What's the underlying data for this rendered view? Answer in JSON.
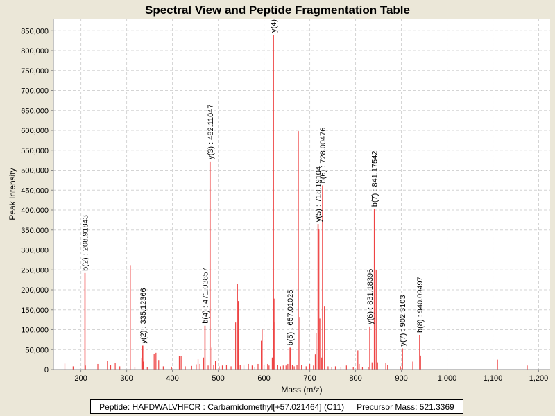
{
  "chart_data": {
    "type": "bar",
    "title": "Spectral View and Peptide Fragmentation Table",
    "xlabel": "Mass (m/z)",
    "ylabel": "Peak Intensity",
    "xlim": [
      140,
      1225
    ],
    "ylim": [
      0,
      880000
    ],
    "x_ticks": [
      200,
      300,
      400,
      500,
      600,
      700,
      800,
      900,
      1000,
      1100,
      1200
    ],
    "x_tick_labels": [
      "200",
      "300",
      "400",
      "500",
      "600",
      "700",
      "800",
      "900",
      "1,000",
      "1,100",
      "1,200"
    ],
    "y_ticks": [
      0,
      50000,
      100000,
      150000,
      200000,
      250000,
      300000,
      350000,
      400000,
      450000,
      500000,
      550000,
      600000,
      650000,
      700000,
      750000,
      800000,
      850000
    ],
    "y_tick_labels": [
      "0",
      "50,000",
      "100,000",
      "150,000",
      "200,000",
      "250,000",
      "300,000",
      "350,000",
      "400,000",
      "450,000",
      "500,000",
      "550,000",
      "600,000",
      "650,000",
      "700,000",
      "750,000",
      "800,000",
      "850,000"
    ],
    "grid": true,
    "series_color": "#ee4444",
    "annotated_peaks": [
      {
        "mz": 208.91843,
        "intensity": 242000,
        "label": "b(2) : 208.91843"
      },
      {
        "mz": 335.12366,
        "intensity": 60000,
        "label": "y(2) : 335.12366"
      },
      {
        "mz": 471.03857,
        "intensity": 110000,
        "label": "b(4) : 471.03857"
      },
      {
        "mz": 482.11047,
        "intensity": 522000,
        "label": "y(3) : 482.11047"
      },
      {
        "mz": 620.5,
        "intensity": 840000,
        "label": "y(4)"
      },
      {
        "mz": 657.01025,
        "intensity": 55000,
        "label": "b(5) : 657.01025"
      },
      {
        "mz": 718.19104,
        "intensity": 365000,
        "label": "y(5) : 718.19104"
      },
      {
        "mz": 728.00476,
        "intensity": 462000,
        "label": "b(6) : 728.00476"
      },
      {
        "mz": 831.18396,
        "intensity": 108000,
        "label": "y(6) : 831.18396"
      },
      {
        "mz": 841.17542,
        "intensity": 403000,
        "label": "b(7) : 841.17542"
      },
      {
        "mz": 902.3103,
        "intensity": 53000,
        "label": "y(7) : 902.3103"
      },
      {
        "mz": 940.09497,
        "intensity": 87000,
        "label": "b(8) : 940.09497"
      }
    ],
    "peaks": [
      [
        165,
        15000
      ],
      [
        183,
        8000
      ],
      [
        210,
        10000
      ],
      [
        237,
        14000
      ],
      [
        258,
        22000
      ],
      [
        265,
        12000
      ],
      [
        275,
        16000
      ],
      [
        285,
        8000
      ],
      [
        308,
        262000
      ],
      [
        318,
        7000
      ],
      [
        333,
        28000
      ],
      [
        337,
        20000
      ],
      [
        345,
        6000
      ],
      [
        360,
        40000
      ],
      [
        364,
        42000
      ],
      [
        370,
        24000
      ],
      [
        380,
        8000
      ],
      [
        398,
        7000
      ],
      [
        415,
        34000
      ],
      [
        419,
        34000
      ],
      [
        428,
        8000
      ],
      [
        442,
        9000
      ],
      [
        452,
        13000
      ],
      [
        456,
        26000
      ],
      [
        460,
        14000
      ],
      [
        468,
        30000
      ],
      [
        478,
        10000
      ],
      [
        486,
        55000
      ],
      [
        490,
        12000
      ],
      [
        494,
        22000
      ],
      [
        502,
        8000
      ],
      [
        509,
        10000
      ],
      [
        518,
        12000
      ],
      [
        528,
        8000
      ],
      [
        538,
        118000
      ],
      [
        542,
        215000
      ],
      [
        544,
        172000
      ],
      [
        548,
        12000
      ],
      [
        556,
        10000
      ],
      [
        566,
        14000
      ],
      [
        574,
        10000
      ],
      [
        580,
        6000
      ],
      [
        587,
        14000
      ],
      [
        594,
        72000
      ],
      [
        596,
        100000
      ],
      [
        600,
        12000
      ],
      [
        608,
        14000
      ],
      [
        611,
        10000
      ],
      [
        618,
        30000
      ],
      [
        622,
        178000
      ],
      [
        624,
        118000
      ],
      [
        630,
        12000
      ],
      [
        636,
        8000
      ],
      [
        642,
        10000
      ],
      [
        648,
        10000
      ],
      [
        652,
        14000
      ],
      [
        662,
        12000
      ],
      [
        666,
        8000
      ],
      [
        672,
        12000
      ],
      [
        675,
        598000
      ],
      [
        678,
        132000
      ],
      [
        682,
        12000
      ],
      [
        692,
        8000
      ],
      [
        700,
        14000
      ],
      [
        708,
        10000
      ],
      [
        712,
        38000
      ],
      [
        714,
        92000
      ],
      [
        720,
        352000
      ],
      [
        722,
        128000
      ],
      [
        726,
        30000
      ],
      [
        732,
        158000
      ],
      [
        740,
        8000
      ],
      [
        748,
        6000
      ],
      [
        756,
        8000
      ],
      [
        768,
        6000
      ],
      [
        780,
        10000
      ],
      [
        795,
        6000
      ],
      [
        805,
        48000
      ],
      [
        808,
        14000
      ],
      [
        815,
        6000
      ],
      [
        828,
        6000
      ],
      [
        836,
        18000
      ],
      [
        845,
        250000
      ],
      [
        848,
        18000
      ],
      [
        866,
        16000
      ],
      [
        870,
        12000
      ],
      [
        898,
        8000
      ],
      [
        925,
        20000
      ],
      [
        942,
        35000
      ],
      [
        1110,
        25000
      ],
      [
        1175,
        10000
      ]
    ]
  },
  "footer": {
    "peptide": "Peptide: HAFDWALVHFCR : Carbamidomethyl[+57.021464] (C11)",
    "precursor": "Precursor Mass: 521.3369"
  }
}
